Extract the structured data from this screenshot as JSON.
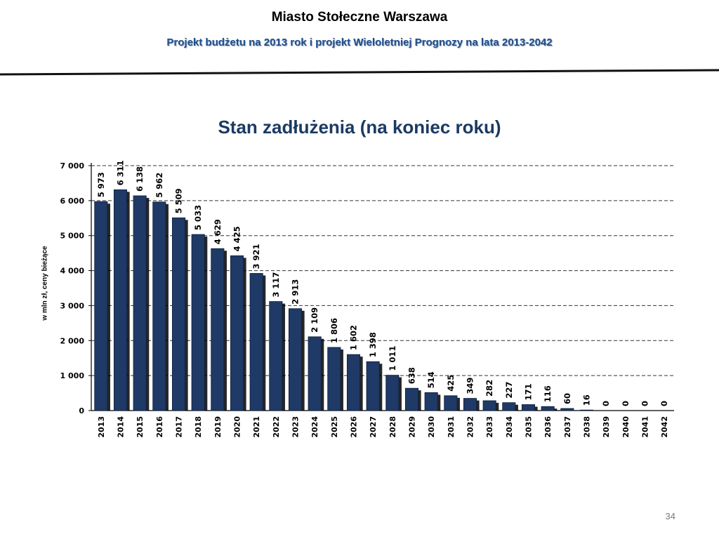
{
  "header": {
    "title": "Miasto Stołeczne Warszawa",
    "subtitle": "Projekt budżetu na 2013 rok i projekt Wieloletniej Prognozy na lata 2013-2042"
  },
  "page_number": "34",
  "chart_data": {
    "type": "bar",
    "title": "Stan zadłużenia (na koniec roku)",
    "xlabel": "",
    "ylabel": "w mln zł, ceny bieżące",
    "ylim": [
      0,
      7000
    ],
    "yticks": [
      0,
      1000,
      2000,
      3000,
      4000,
      5000,
      6000,
      7000
    ],
    "ytick_labels": [
      "0",
      "1 000",
      "2 000",
      "3 000",
      "4 000",
      "5 000",
      "6 000",
      "7 000"
    ],
    "grid": "horizontal dashed",
    "bar_color": "#1f3a66",
    "categories": [
      "2013",
      "2014",
      "2015",
      "2016",
      "2017",
      "2018",
      "2019",
      "2020",
      "2021",
      "2022",
      "2023",
      "2024",
      "2025",
      "2026",
      "2027",
      "2028",
      "2029",
      "2030",
      "2031",
      "2032",
      "2033",
      "2034",
      "2035",
      "2036",
      "2037",
      "2038",
      "2039",
      "2040",
      "2041",
      "2042"
    ],
    "values": [
      5973,
      6311,
      6138,
      5962,
      5509,
      5033,
      4629,
      4425,
      3921,
      3117,
      2913,
      2109,
      1806,
      1602,
      1398,
      1011,
      638,
      514,
      425,
      349,
      282,
      227,
      171,
      116,
      60,
      16,
      0,
      0,
      0,
      0
    ],
    "value_labels": [
      "5 973",
      "6 311",
      "6 138",
      "5 962",
      "5 509",
      "5 033",
      "4 629",
      "4 425",
      "3 921",
      "3 117",
      "2 913",
      "2 109",
      "1 806",
      "1 602",
      "1 398",
      "1 011",
      "638",
      "514",
      "425",
      "349",
      "282",
      "227",
      "171",
      "116",
      "60",
      "16",
      "0",
      "0",
      "0",
      "0"
    ]
  }
}
